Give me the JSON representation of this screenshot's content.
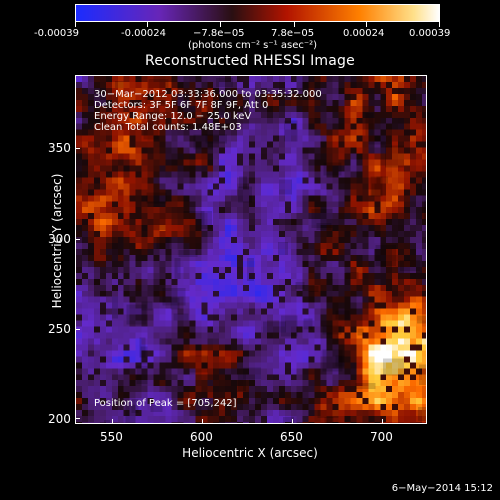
{
  "colorbar": {
    "ticks": [
      "-0.00039",
      "-0.00024",
      "−7.8e−05",
      "7.8e−05",
      "0.00024",
      "0.00039"
    ],
    "unit_label": "(photons cm⁻² s⁻¹ asec⁻²)"
  },
  "title": "Reconstructed RHESSI Image",
  "overlay": {
    "line1": "30−Mar−2012 03:33:36.000 to 03:35:32.000",
    "line2": "Detectors: 3F 5F 6F 7F 8F 9F, Att 0",
    "line3": "Energy Range: 12.0 − 25.0 keV",
    "line4": "Clean     Total counts: 1.48E+03",
    "peak": "Position of Peak = [705,242]"
  },
  "axes": {
    "x_label": "Heliocentric X (arcsec)",
    "y_label": "Heliocentric Y (arcsec)",
    "x_ticks": [
      "550",
      "600",
      "650",
      "700"
    ],
    "y_ticks": [
      "200",
      "250",
      "300",
      "350"
    ]
  },
  "timestamp": "6−May−2014 15:12",
  "colors": {
    "low": "#1c2cff",
    "mid_low": "#4b1f8f",
    "mid": "#3a1718",
    "mid_high": "#c23a08",
    "high": "#ff8a00",
    "top": "#ffffff"
  },
  "chart_data": {
    "type": "heatmap",
    "title": "Reconstructed RHESSI Image",
    "xlabel": "Heliocentric X (arcsec)",
    "ylabel": "Heliocentric Y (arcsec)",
    "xlim": [
      530,
      722
    ],
    "ylim": [
      198,
      392
    ],
    "x_ticks": [
      550,
      600,
      650,
      700
    ],
    "y_ticks": [
      200,
      250,
      300,
      350
    ],
    "colorbar": {
      "label": "(photons cm⁻² s⁻¹ asec⁻²)",
      "ticks": [
        -0.00039,
        -0.00024,
        -7.8e-05,
        7.8e-05,
        0.00024,
        0.00039
      ]
    },
    "peak": [
      705,
      242
    ]
  }
}
